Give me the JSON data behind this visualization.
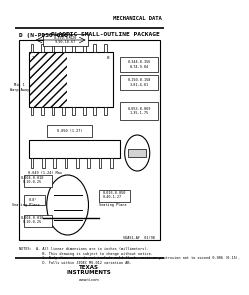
{
  "bg_color": "#ffffff",
  "header_text": "MECHANICAL DATA",
  "title_left": "D (N-PDSO-G16)",
  "title_right": "PLASTIC SMALL-OUTLINE PACKAGE",
  "footer_logo_text": "TEXAS\nINSTRUMENTS",
  "notes_text": "NOTES:  A. All linear dimensions are in inches (millimeters).\n           B. This drawing is subject to change without notice.\n           C. Body dimensions do not include mold flash, resin or protrusion not to exceed 0.006 (0.15).\n           D. Falls within JEDEC MS-012 variation AB.",
  "ref_text": "SDAS1-AF  01/98"
}
